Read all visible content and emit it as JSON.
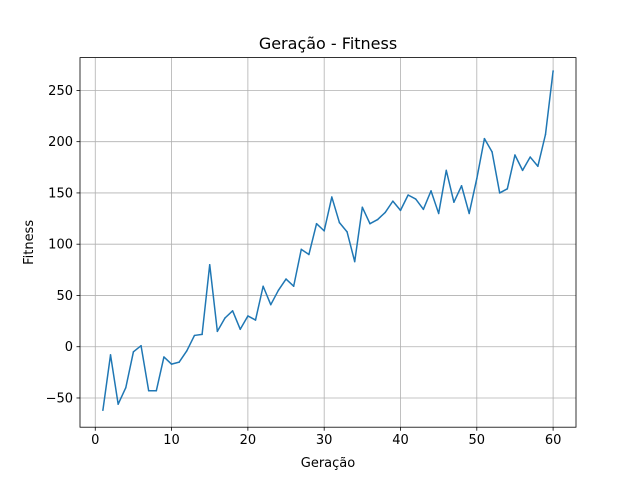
{
  "chart_data": {
    "type": "line",
    "title": "Geração - Fitness",
    "xlabel": "Geração",
    "ylabel": "Fitness",
    "xlim": [
      -2,
      63
    ],
    "ylim": [
      -78.5,
      282
    ],
    "xticks": [
      0,
      10,
      20,
      30,
      40,
      50,
      60
    ],
    "yticks": [
      -50,
      0,
      50,
      100,
      150,
      200,
      250
    ],
    "grid": true,
    "legend": "none",
    "series": [
      {
        "color": "#1f77b4",
        "x": [
          1,
          2,
          3,
          4,
          5,
          6,
          7,
          8,
          9,
          10,
          11,
          12,
          13,
          14,
          15,
          16,
          17,
          18,
          19,
          20,
          21,
          22,
          23,
          24,
          25,
          26,
          27,
          28,
          29,
          30,
          31,
          32,
          33,
          34,
          35,
          36,
          37,
          38,
          39,
          40,
          41,
          42,
          43,
          44,
          45,
          46,
          47,
          48,
          49,
          50,
          51,
          52,
          53,
          54,
          55,
          56,
          57,
          58,
          59,
          60
        ],
        "values": [
          -62,
          -8,
          -56,
          -40,
          -5,
          1,
          -43,
          -43,
          -10,
          -17,
          -15,
          -4,
          11,
          12,
          80,
          15,
          28,
          35,
          17,
          30,
          26,
          59,
          41,
          55,
          66,
          59,
          95,
          90,
          120,
          113,
          146,
          121,
          112,
          83,
          136,
          120,
          124,
          131,
          142,
          133,
          148,
          144,
          134,
          152,
          130,
          172,
          141,
          157,
          130,
          164,
          203,
          190,
          150,
          154,
          187,
          172,
          185,
          176,
          207,
          269
        ]
      }
    ]
  }
}
